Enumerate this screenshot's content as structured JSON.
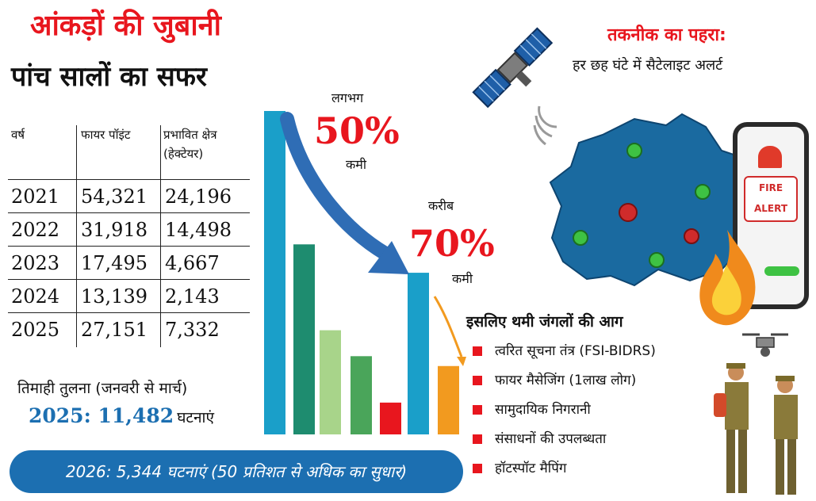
{
  "title_line1": "आंकड़ों की जुबानी",
  "title_line2": "पांच सालों का सफर",
  "table": {
    "headers": {
      "year": "वर्ष",
      "fire_points": "फायर पॉइंट",
      "affected_area": "प्रभावित क्षेत्र (हेक्टेयर)"
    },
    "rows": [
      {
        "year": "2021",
        "fire_points": "54,321",
        "area": "24,196"
      },
      {
        "year": "2022",
        "fire_points": "31,918",
        "area": "14,498"
      },
      {
        "year": "2023",
        "fire_points": "17,495",
        "area": "4,667"
      },
      {
        "year": "2024",
        "fire_points": "13,139",
        "area": "2,143"
      },
      {
        "year": "2025",
        "fire_points": "27,151",
        "area": "7,332"
      }
    ]
  },
  "quarterly": {
    "label": "तिमाही तुलना (जनवरी से मार्च)",
    "value": "2025: 11,482",
    "suffix": "घटनाएं"
  },
  "banner": "2026: 5,344 घटनाएं (50 प्रतिशत से अधिक का सुधार)",
  "annotations": {
    "a1_pre": "लगभग",
    "a1_pct": "50%",
    "a1_post": "कमी",
    "a2_pre": "करीब",
    "a2_pct": "70%",
    "a2_post": "कमी"
  },
  "tech": {
    "title": "तकनीक का पहरा:",
    "subtitle": "हर छह घंटे में सैटेलाइट अलर्ट",
    "phone_text_1": "FIRE",
    "phone_text_2": "ALERT"
  },
  "reasons": {
    "title": "इसलिए थमी जंगलों की आग",
    "items": [
      "त्वरित सूचना तंत्र (FSI-BIDRS)",
      "फायर मैसेजिंग (1लाख लोग)",
      "सामुदायिक निगरानी",
      "संसाधनों की उपलब्धता",
      "हॉटस्पॉट मैपिंग"
    ]
  },
  "colors": {
    "red": "#e8161e",
    "blue": "#1c6fb1",
    "arrow_blue": "#2f6db5",
    "orange": "#f29a1f"
  },
  "chart_data": {
    "type": "bar",
    "series": [
      {
        "name": "",
        "values": [
          54321,
          31918,
          17495,
          13139
        ]
      },
      {
        "name": "",
        "values": [
          27151,
          11482
        ]
      },
      {
        "name": "",
        "values": [
          5344
        ]
      }
    ],
    "bar_colors": [
      "#1a9fc9",
      "#1e8c6f",
      "#a8d48a",
      "#4aa55a",
      "#e8161e",
      "#1a9fc9",
      "#f29a1f"
    ],
    "bar_values": [
      54321,
      31918,
      17495,
      13139,
      5344,
      27151,
      11482
    ],
    "ylim": [
      0,
      54321
    ]
  }
}
